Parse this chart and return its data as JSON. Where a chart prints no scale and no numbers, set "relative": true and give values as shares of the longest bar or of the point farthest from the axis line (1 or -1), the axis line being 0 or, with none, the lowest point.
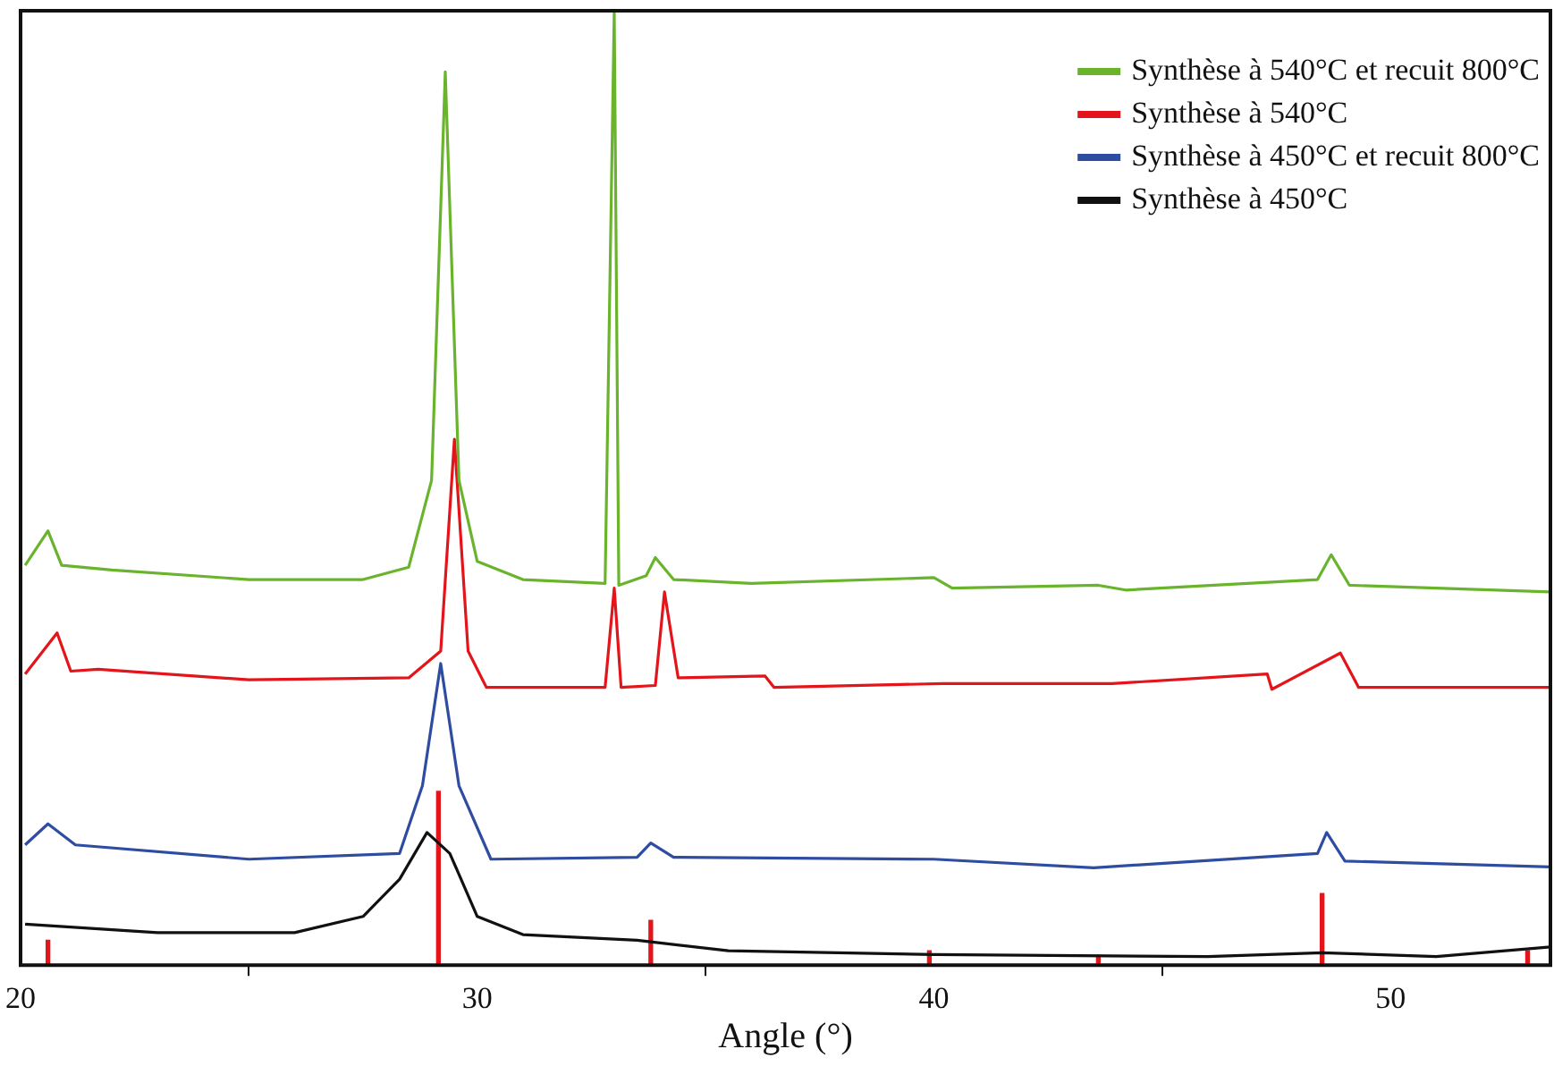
{
  "chart_data": {
    "type": "line",
    "xlabel": "Angle (°)",
    "relative": true,
    "xlim": [
      20,
      53.5
    ],
    "xticks": [
      20,
      30,
      40,
      50
    ],
    "grid": false,
    "legend": "top right",
    "marker": "none",
    "line_style": "solid",
    "tick_labels": "x",
    "series": [
      {
        "name": "Synthèse à 540°C et recuit 800°C",
        "color": "#6ab42d",
        "x": [
          20.1,
          20.6,
          20.9,
          22,
          25,
          27.5,
          28.5,
          29.0,
          29.3,
          29.6,
          30.0,
          31,
          32.8,
          33.0,
          33.1,
          33.7,
          33.9,
          34.3,
          36.0,
          40.0,
          40.4,
          43.6,
          44.2,
          48.4,
          48.7,
          49.1,
          53.5
        ],
        "values": [
          0.419,
          0.455,
          0.419,
          0.414,
          0.404,
          0.404,
          0.417,
          0.508,
          0.936,
          0.508,
          0.423,
          0.404,
          0.4,
          1.0,
          0.398,
          0.408,
          0.427,
          0.404,
          0.4,
          0.406,
          0.395,
          0.398,
          0.393,
          0.404,
          0.43,
          0.398,
          0.391
        ]
      },
      {
        "name": "Synthèse à 540°C",
        "color": "#e3151b",
        "x": [
          20.1,
          20.8,
          21.1,
          21.7,
          25,
          28.5,
          29.2,
          29.5,
          29.8,
          30.2,
          32.8,
          33.0,
          33.15,
          33.9,
          34.1,
          34.4,
          36.3,
          36.5,
          40.2,
          43.9,
          47.3,
          47.4,
          48.9,
          49.3,
          53.5
        ],
        "values": [
          0.305,
          0.348,
          0.308,
          0.31,
          0.299,
          0.301,
          0.329,
          0.551,
          0.329,
          0.291,
          0.291,
          0.395,
          0.291,
          0.293,
          0.391,
          0.301,
          0.303,
          0.291,
          0.295,
          0.295,
          0.305,
          0.289,
          0.327,
          0.291,
          0.291
        ]
      },
      {
        "name": "Synthèse à 450°C et recuit 800°C",
        "color": "#2f4da0",
        "x": [
          20.1,
          20.6,
          21.2,
          25,
          28.3,
          28.8,
          29.2,
          29.6,
          30.3,
          33.5,
          33.8,
          34.3,
          40.0,
          43.5,
          48.4,
          48.6,
          49.0,
          53.5
        ],
        "values": [
          0.126,
          0.148,
          0.126,
          0.111,
          0.117,
          0.188,
          0.316,
          0.188,
          0.111,
          0.113,
          0.128,
          0.113,
          0.111,
          0.102,
          0.117,
          0.139,
          0.109,
          0.103
        ]
      },
      {
        "name": "Synthèse à 450°C",
        "color": "#111111",
        "x": [
          20.1,
          23,
          26,
          27.5,
          28.3,
          28.9,
          29.4,
          30.0,
          31,
          33.5,
          35.5,
          40,
          46,
          48.5,
          51,
          53.5
        ],
        "values": [
          0.043,
          0.034,
          0.034,
          0.051,
          0.09,
          0.139,
          0.117,
          0.051,
          0.032,
          0.026,
          0.015,
          0.011,
          0.009,
          0.013,
          0.009,
          0.019
        ]
      },
      {
        "type": "bar",
        "color": "#e3151b",
        "x": [
          20.6,
          29.15,
          33.8,
          39.9,
          43.6,
          48.5,
          53.0
        ],
        "values": [
          0.026,
          0.182,
          0.047,
          0.015,
          0.01,
          0.075,
          0.015
        ]
      }
    ]
  }
}
